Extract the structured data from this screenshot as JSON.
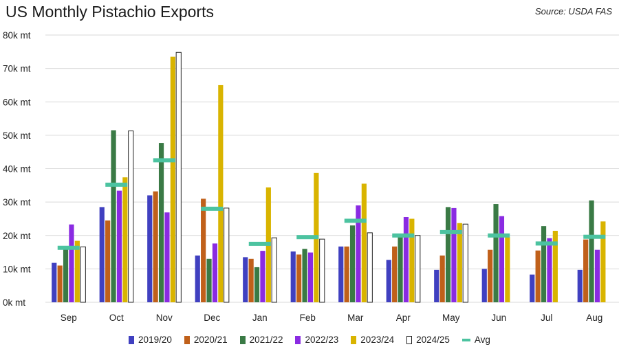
{
  "chart_data": {
    "type": "bar",
    "title": "US Monthly Pistachio Exports",
    "source": "Source: USDA FAS",
    "categories": [
      "Sep",
      "Oct",
      "Nov",
      "Dec",
      "Jan",
      "Feb",
      "Mar",
      "Apr",
      "May",
      "Jun",
      "Jul",
      "Aug"
    ],
    "yticks": [
      "0k mt",
      "10k mt",
      "20k mt",
      "30k mt",
      "40k mt",
      "50k mt",
      "60k mt",
      "70k mt",
      "80k mt"
    ],
    "ylim": [
      0,
      80000
    ],
    "grid": true,
    "legend_position": "bottom",
    "series": [
      {
        "name": "2019/20",
        "color": "#4040c0",
        "values": [
          11800,
          28500,
          32000,
          14000,
          13500,
          15200,
          16700,
          12700,
          9700,
          10000,
          8300,
          9700
        ]
      },
      {
        "name": "2020/21",
        "color": "#c0601a",
        "values": [
          11000,
          24500,
          33200,
          31000,
          13000,
          14300,
          16700,
          16700,
          14000,
          15700,
          15500,
          18800
        ]
      },
      {
        "name": "2021/22",
        "color": "#3a7a45",
        "values": [
          16400,
          51500,
          47700,
          13000,
          10500,
          16000,
          23000,
          19600,
          28500,
          29400,
          22800,
          30500
        ]
      },
      {
        "name": "2022/23",
        "color": "#8a2be2",
        "values": [
          23300,
          33400,
          26900,
          17600,
          15400,
          14900,
          29000,
          25500,
          28200,
          25800,
          19200,
          15700
        ]
      },
      {
        "name": "2023/24",
        "color": "#d9b400",
        "values": [
          18400,
          37400,
          73500,
          65000,
          34400,
          38700,
          35500,
          25000,
          23700,
          19500,
          21400,
          24200
        ]
      },
      {
        "name": "2024/25",
        "color": "#ffffff",
        "values": [
          16600,
          51300,
          74800,
          28200,
          19300,
          18900,
          20800,
          20000,
          23400,
          null,
          null,
          null
        ]
      }
    ],
    "avg": {
      "name": "Avg",
      "color": "#4cc3a0",
      "values": [
        16300,
        35200,
        42500,
        28000,
        17500,
        19500,
        24400,
        20000,
        21000,
        20000,
        17600,
        19600
      ]
    }
  }
}
